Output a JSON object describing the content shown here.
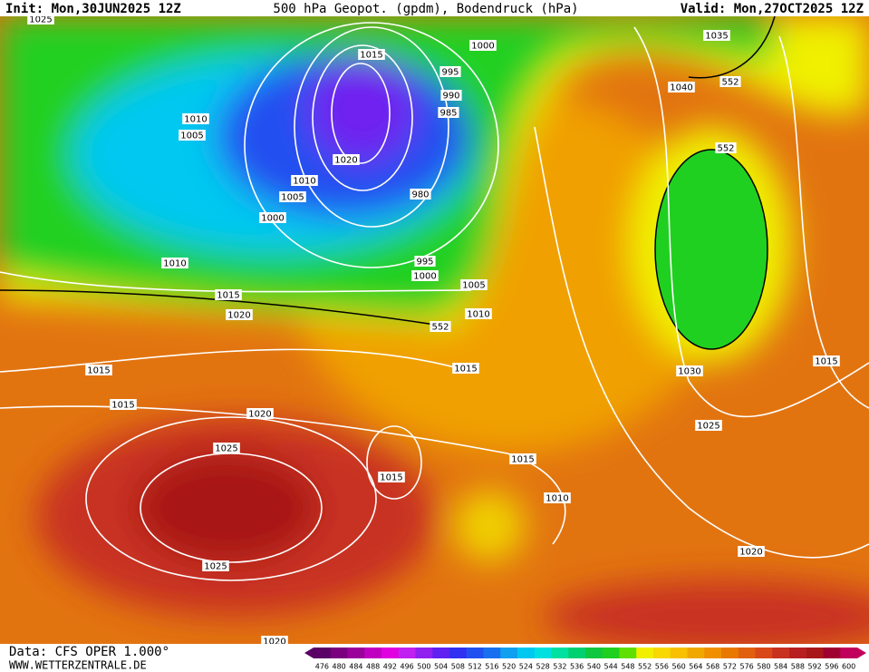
{
  "header": {
    "init": "Init: Mon,30JUN2025 12Z",
    "title": "500 hPa Geopot. (gpdm), Bodendruck (hPa)",
    "valid": "Valid: Mon,27OCT2025 12Z"
  },
  "map": {
    "isobar_labels": [
      "1025",
      "1015",
      "1000",
      "995",
      "990",
      "985",
      "1010",
      "1005",
      "1020",
      "1010",
      "1005",
      "980",
      "1000",
      "995",
      "1000",
      "1010",
      "1005",
      "1015",
      "1010",
      "1020",
      "552",
      "1015",
      "1015",
      "1015",
      "1020",
      "1025",
      "1015",
      "1015",
      "1010",
      "1025",
      "1020",
      "1030",
      "1025",
      "1015",
      "1035",
      "1040",
      "552",
      "552",
      "1020"
    ]
  },
  "footer": {
    "data": "Data: CFS OPER 1.000°",
    "site": "WWW.WETTERZENTRALE.DE"
  },
  "colorbar": {
    "labels": [
      476,
      480,
      484,
      488,
      492,
      496,
      500,
      504,
      508,
      512,
      516,
      520,
      524,
      528,
      532,
      536,
      540,
      544,
      548,
      552,
      556,
      560,
      564,
      568,
      572,
      576,
      580,
      584,
      588,
      592,
      596,
      600
    ],
    "colors": [
      "#5a0066",
      "#7a0080",
      "#9a009a",
      "#c000c0",
      "#e000e0",
      "#c020f0",
      "#9020f0",
      "#6020f0",
      "#3030f0",
      "#2050f0",
      "#1870f0",
      "#10a0f0",
      "#00c8f0",
      "#00e0e0",
      "#00e0a0",
      "#00d070",
      "#10c840",
      "#20d020",
      "#60e000",
      "#f0f000",
      "#f8d800",
      "#f8c000",
      "#f0a800",
      "#f09000",
      "#e87800",
      "#e06010",
      "#d84818",
      "#c83020",
      "#b82020",
      "#a81818",
      "#a00030",
      "#c0005c"
    ]
  }
}
